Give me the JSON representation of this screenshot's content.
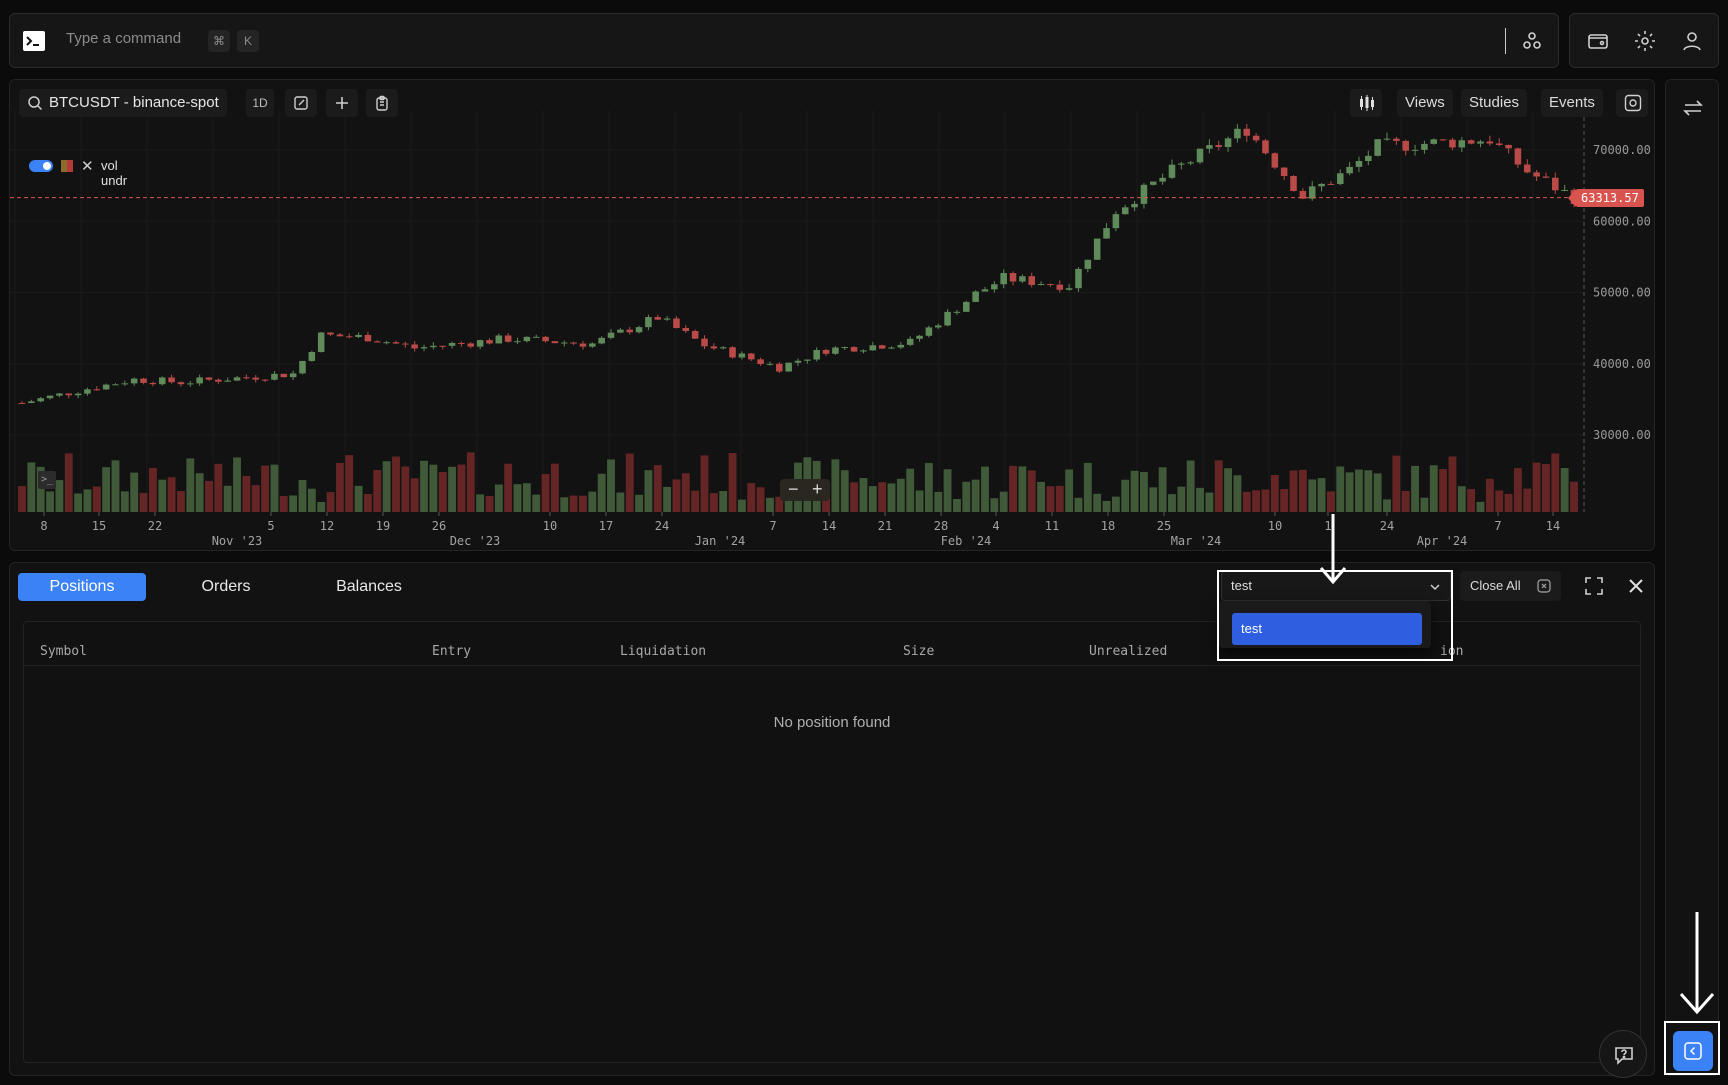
{
  "command_bar": {
    "placeholder": "Type a command",
    "shortcut_mod": "⌘",
    "shortcut_key": "K"
  },
  "chart": {
    "symbol": "BTCUSDT",
    "exchange": "binance-spot",
    "symbol_display": "BTCUSDT  -  binance-spot",
    "timeframe": "1D",
    "menu": {
      "views": "Views",
      "studies": "Studies",
      "events": "Events"
    },
    "legend": {
      "label": "vol undr",
      "enabled": true
    },
    "last_price": "63313.57",
    "y_ticks": [
      "70000.00",
      "60000.00",
      "50000.00",
      "40000.00",
      "30000.00"
    ],
    "x_day_ticks": [
      "8",
      "15",
      "22",
      "5",
      "12",
      "19",
      "26",
      "10",
      "17",
      "24",
      "7",
      "14",
      "21",
      "28",
      "4",
      "11",
      "18",
      "25",
      "10",
      "1",
      "24",
      "7",
      "14"
    ],
    "x_month_ticks": [
      "Nov '23",
      "Dec '23",
      "Jan '24",
      "Feb '24",
      "Mar '24",
      "Apr '24"
    ],
    "zoom_out": "−",
    "zoom_in": "+",
    "colors": {
      "up": "#5f8a5a",
      "down": "#b94a48",
      "price_line": "#d9534f"
    }
  },
  "chart_data": {
    "type": "candlestick",
    "title": "",
    "ylim": [
      25000,
      75000
    ],
    "x_range": [
      "2023-11-03",
      "2024-04-17"
    ],
    "close_keypoints": [
      [
        "2023-11-03",
        34500
      ],
      [
        "2023-11-10",
        36500
      ],
      [
        "2023-11-15",
        37800
      ],
      [
        "2023-11-20",
        37400
      ],
      [
        "2023-12-02",
        38600
      ],
      [
        "2023-12-05",
        44000
      ],
      [
        "2023-12-10",
        43700
      ],
      [
        "2023-12-15",
        42200
      ],
      [
        "2023-12-25",
        43500
      ],
      [
        "2024-01-03",
        42800
      ],
      [
        "2024-01-10",
        46500
      ],
      [
        "2024-01-15",
        42600
      ],
      [
        "2024-01-23",
        39500
      ],
      [
        "2024-01-28",
        42000
      ],
      [
        "2024-02-06",
        43000
      ],
      [
        "2024-02-13",
        49800
      ],
      [
        "2024-02-16",
        52000
      ],
      [
        "2024-02-23",
        51000
      ],
      [
        "2024-02-28",
        61500
      ],
      [
        "2024-03-05",
        67000
      ],
      [
        "2024-03-13",
        73000
      ],
      [
        "2024-03-19",
        63500
      ],
      [
        "2024-03-24",
        67200
      ],
      [
        "2024-03-27",
        70500
      ],
      [
        "2024-04-08",
        71500
      ],
      [
        "2024-04-12",
        67000
      ],
      [
        "2024-04-17",
        63313.57
      ]
    ],
    "series": [
      {
        "name": "vol undr",
        "type": "volume"
      }
    ]
  },
  "bottom": {
    "tabs": [
      "Positions",
      "Orders",
      "Balances"
    ],
    "active_tab": "Positions",
    "account_value": "test",
    "dropdown_options": [
      "test"
    ],
    "close_all": "Close All",
    "columns": [
      "Symbol",
      "Entry",
      "Liquidation",
      "Size",
      "Unrealized",
      "ion"
    ],
    "empty_message": "No position found"
  }
}
